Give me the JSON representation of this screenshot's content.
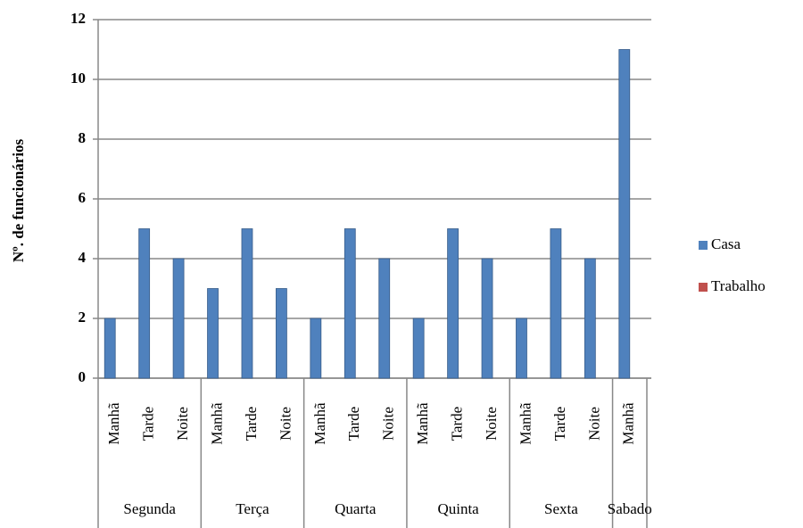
{
  "chart_data": {
    "type": "bar",
    "y_label": "Nº. de funcionários",
    "groups": [
      {
        "label": "Segunda",
        "categories": [
          "Manhã",
          "Tarde",
          "Noite"
        ]
      },
      {
        "label": "Terça",
        "categories": [
          "Manhã",
          "Tarde",
          "Noite"
        ]
      },
      {
        "label": "Quarta",
        "categories": [
          "Manhã",
          "Tarde",
          "Noite"
        ]
      },
      {
        "label": "Quinta",
        "categories": [
          "Manhã",
          "Tarde",
          "Noite"
        ]
      },
      {
        "label": "Sexta",
        "categories": [
          "Manhã",
          "Tarde",
          "Noite"
        ]
      },
      {
        "label": "Sabado",
        "categories": [
          "Manhã"
        ]
      }
    ],
    "series": [
      {
        "name": "Casa",
        "color": "#4f81bd",
        "values": [
          2,
          5,
          4,
          3,
          5,
          3,
          2,
          5,
          4,
          2,
          5,
          4,
          2,
          5,
          4,
          11
        ]
      },
      {
        "name": "Trabalho",
        "color": "#c0504d",
        "values": [
          0,
          0,
          0,
          0,
          0,
          0,
          0,
          0,
          0,
          0,
          0,
          0,
          0,
          0,
          0,
          0
        ]
      }
    ],
    "ylim": [
      0,
      12
    ],
    "yticks": [
      0,
      2,
      4,
      6,
      8,
      10,
      12
    ],
    "grid": true,
    "legend": "right"
  }
}
